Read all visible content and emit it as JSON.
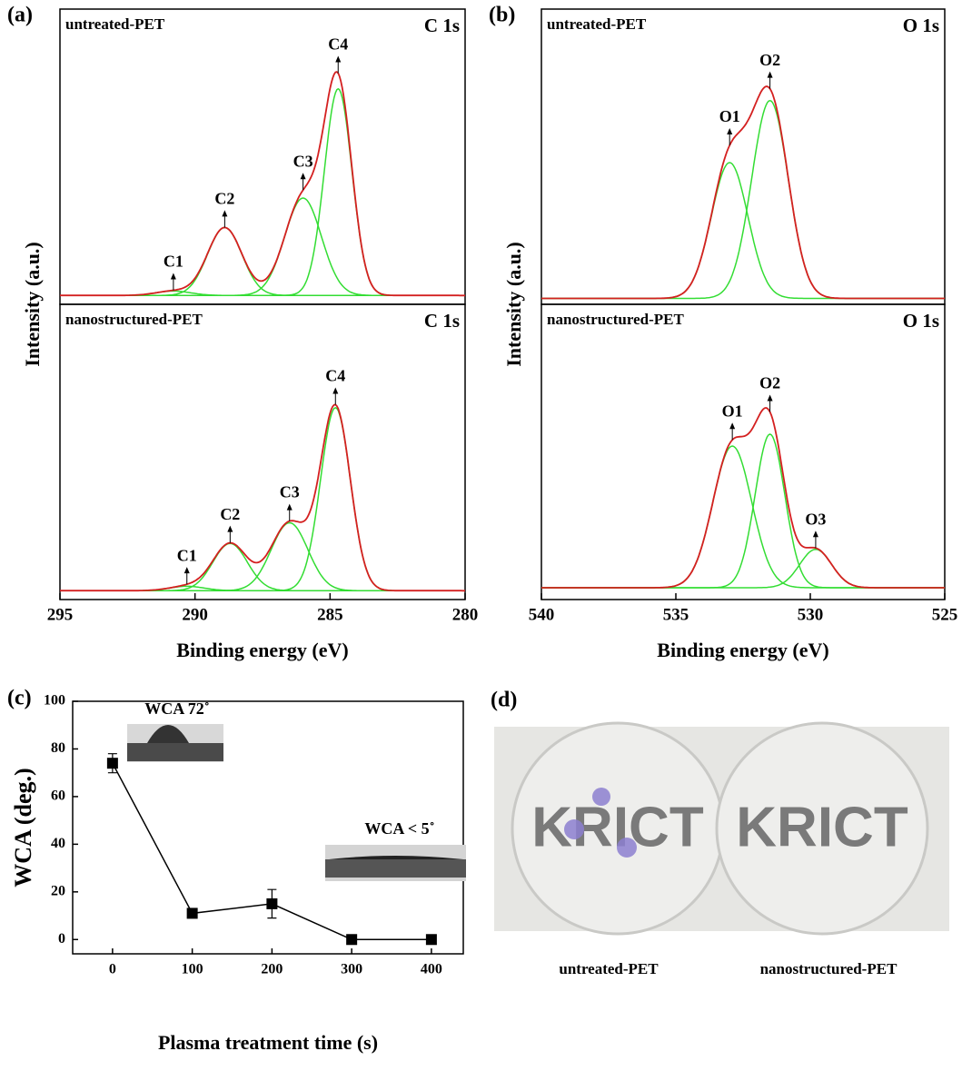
{
  "chart_data": [
    {
      "type": "xps",
      "label": "(a)",
      "xlabel": "Binding energy (eV)",
      "ylabel": "Intensity (a.u.)",
      "xlim": [
        295,
        280
      ],
      "xticks": [
        295,
        290,
        285,
        280
      ],
      "fit_color": "#d42020",
      "component_color": "#33dd33",
      "panels": [
        {
          "title": "untreated-PET",
          "core": "C 1s",
          "ylim": [
            0,
            100
          ],
          "baseline": 3,
          "series": [
            {
              "name": "C1",
              "center": 290.8,
              "height": 1.5,
              "width": 1.5
            },
            {
              "name": "C2",
              "center": 288.9,
              "height": 23,
              "width": 1.5
            },
            {
              "name": "C3",
              "center": 286.0,
              "height": 33,
              "width": 1.6
            },
            {
              "name": "C4",
              "center": 284.7,
              "height": 70,
              "width": 1.2
            }
          ]
        },
        {
          "title": "nanostructured-PET",
          "core": "C 1s",
          "ylim": [
            0,
            100
          ],
          "baseline": 3,
          "series": [
            {
              "name": "C1",
              "center": 290.3,
              "height": 1.5,
              "width": 1.5
            },
            {
              "name": "C2",
              "center": 288.7,
              "height": 16,
              "width": 1.5
            },
            {
              "name": "C3",
              "center": 286.5,
              "height": 23,
              "width": 1.6
            },
            {
              "name": "C4",
              "center": 284.8,
              "height": 62,
              "width": 1.3
            }
          ]
        }
      ]
    },
    {
      "type": "xps",
      "label": "(b)",
      "xlabel": "Binding energy (eV)",
      "ylabel": "Intensity (a.u.)",
      "xlim": [
        540,
        525
      ],
      "xticks": [
        540,
        535,
        530,
        525
      ],
      "fit_color": "#d42020",
      "component_color": "#33dd33",
      "panels": [
        {
          "title": "untreated-PET",
          "core": "O 1s",
          "ylim": [
            0,
            100
          ],
          "baseline": 2,
          "series": [
            {
              "name": "O1",
              "center": 533.0,
              "height": 46,
              "width": 1.6
            },
            {
              "name": "O2",
              "center": 531.5,
              "height": 67,
              "width": 1.6
            }
          ]
        },
        {
          "title": "nanostructured-PET",
          "core": "O 1s",
          "ylim": [
            0,
            100
          ],
          "baseline": 4,
          "series": [
            {
              "name": "O1",
              "center": 532.9,
              "height": 48,
              "width": 1.7
            },
            {
              "name": "O2",
              "center": 531.5,
              "height": 52,
              "width": 1.3
            },
            {
              "name": "O3",
              "center": 529.8,
              "height": 13,
              "width": 1.4
            }
          ]
        }
      ]
    },
    {
      "type": "line",
      "label": "(c)",
      "xlabel": "Plasma treatment time (s)",
      "ylabel": "WCA (deg.)",
      "x": [
        0,
        100,
        200,
        300,
        400
      ],
      "xlim": [
        -50,
        440
      ],
      "xticks": [
        0,
        100,
        200,
        300,
        400
      ],
      "ylim": [
        -6,
        100
      ],
      "yticks": [
        0,
        20,
        40,
        60,
        80,
        100
      ],
      "series": [
        {
          "color": "#000000",
          "values": [
            74,
            11,
            15,
            0,
            0
          ],
          "errors": [
            4,
            0,
            6,
            0,
            0
          ]
        }
      ],
      "annotations": [
        "WCA 72˚",
        "WCA < 5˚"
      ]
    }
  ],
  "photo": {
    "label": "(d)",
    "logo_text": "KRICT",
    "captions": [
      "untreated-PET",
      "nanostructured-PET"
    ]
  }
}
